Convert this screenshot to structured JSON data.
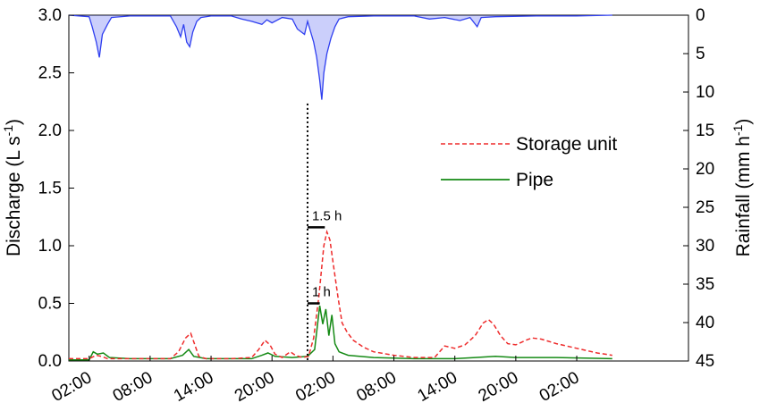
{
  "chart_data": {
    "type": "line",
    "xlabel": "",
    "ylabel": "Discharge (L s",
    "ylabel_sup": "-1",
    "ylabel_end": ")",
    "y2label": "Rainfall (mm h",
    "y2label_sup": "-1",
    "y2label_end": ")",
    "ylim": [
      0,
      3.0
    ],
    "y2lim": [
      45,
      0
    ],
    "y2_inverted": true,
    "x_range_hours": [
      -2,
      59
    ],
    "x_ticks": [
      {
        "hour": 0,
        "label": "02:00"
      },
      {
        "hour": 6,
        "label": "08:00"
      },
      {
        "hour": 12,
        "label": "14:00"
      },
      {
        "hour": 18,
        "label": "20:00"
      },
      {
        "hour": 24,
        "label": "02:00"
      },
      {
        "hour": 30,
        "label": "08:00"
      },
      {
        "hour": 36,
        "label": "14:00"
      },
      {
        "hour": 42,
        "label": "20:00"
      },
      {
        "hour": 48,
        "label": "02:00"
      }
    ],
    "y_ticks": [
      "0.0",
      "0.5",
      "1.0",
      "1.5",
      "2.0",
      "2.5",
      "3.0"
    ],
    "y2_ticks": [
      "0",
      "5",
      "10",
      "15",
      "20",
      "25",
      "30",
      "35",
      "40",
      "45"
    ],
    "legend_position": "center-right",
    "colors": {
      "storage": "#ee2b2b",
      "pipe": "#158a15",
      "rainfall": "#2f3ff0"
    },
    "series": [
      {
        "name": "Storage unit",
        "axis": "left",
        "style": "dashed",
        "points": [
          [
            -2,
            0.02
          ],
          [
            0,
            0.02
          ],
          [
            0.7,
            0.05
          ],
          [
            1.2,
            0.04
          ],
          [
            1.8,
            0.02
          ],
          [
            3,
            0.02
          ],
          [
            6,
            0.02
          ],
          [
            8,
            0.02
          ],
          [
            8.8,
            0.08
          ],
          [
            9.5,
            0.2
          ],
          [
            10,
            0.24
          ],
          [
            10.4,
            0.14
          ],
          [
            10.8,
            0.04
          ],
          [
            11.5,
            0.02
          ],
          [
            14,
            0.02
          ],
          [
            16,
            0.03
          ],
          [
            16.7,
            0.1
          ],
          [
            17.3,
            0.18
          ],
          [
            17.8,
            0.14
          ],
          [
            18.3,
            0.06
          ],
          [
            19,
            0.03
          ],
          [
            19.8,
            0.08
          ],
          [
            20.3,
            0.05
          ],
          [
            21,
            0.03
          ],
          [
            21.6,
            0.04
          ],
          [
            22.1,
            0.2
          ],
          [
            22.6,
            0.55
          ],
          [
            23.1,
            1.0
          ],
          [
            23.4,
            1.12
          ],
          [
            23.7,
            1.05
          ],
          [
            24.1,
            0.8
          ],
          [
            24.5,
            0.55
          ],
          [
            24.9,
            0.33
          ],
          [
            25.4,
            0.25
          ],
          [
            26,
            0.18
          ],
          [
            27,
            0.12
          ],
          [
            28,
            0.08
          ],
          [
            30,
            0.05
          ],
          [
            32,
            0.03
          ],
          [
            34,
            0.03
          ],
          [
            35,
            0.13
          ],
          [
            36,
            0.11
          ],
          [
            37,
            0.14
          ],
          [
            38,
            0.22
          ],
          [
            38.8,
            0.33
          ],
          [
            39.3,
            0.36
          ],
          [
            39.8,
            0.32
          ],
          [
            40.5,
            0.22
          ],
          [
            41.2,
            0.15
          ],
          [
            42,
            0.14
          ],
          [
            43,
            0.18
          ],
          [
            43.6,
            0.2
          ],
          [
            44.5,
            0.19
          ],
          [
            46,
            0.15
          ],
          [
            48,
            0.11
          ],
          [
            50,
            0.07
          ],
          [
            51.5,
            0.05
          ]
        ]
      },
      {
        "name": "Pipe",
        "axis": "left",
        "style": "solid",
        "points": [
          [
            -2,
            0.01
          ],
          [
            0,
            0.01
          ],
          [
            0.4,
            0.08
          ],
          [
            0.8,
            0.06
          ],
          [
            1.4,
            0.07
          ],
          [
            2,
            0.03
          ],
          [
            4,
            0.02
          ],
          [
            8,
            0.02
          ],
          [
            9.2,
            0.05
          ],
          [
            9.8,
            0.1
          ],
          [
            10.3,
            0.04
          ],
          [
            11.5,
            0.02
          ],
          [
            16,
            0.02
          ],
          [
            17,
            0.05
          ],
          [
            17.6,
            0.07
          ],
          [
            18.3,
            0.04
          ],
          [
            20,
            0.03
          ],
          [
            21.5,
            0.04
          ],
          [
            22.2,
            0.1
          ],
          [
            22.7,
            0.48
          ],
          [
            23,
            0.32
          ],
          [
            23.3,
            0.45
          ],
          [
            23.6,
            0.22
          ],
          [
            23.9,
            0.4
          ],
          [
            24.2,
            0.15
          ],
          [
            24.6,
            0.08
          ],
          [
            25.5,
            0.05
          ],
          [
            28,
            0.03
          ],
          [
            32,
            0.02
          ],
          [
            36,
            0.02
          ],
          [
            38,
            0.03
          ],
          [
            40,
            0.04
          ],
          [
            42,
            0.03
          ],
          [
            46,
            0.03
          ],
          [
            51.5,
            0.02
          ]
        ]
      },
      {
        "name": "Rainfall",
        "axis": "right",
        "style": "solid",
        "points": [
          [
            -2,
            0
          ],
          [
            0,
            0.2
          ],
          [
            0.3,
            1.5
          ],
          [
            0.7,
            3.5
          ],
          [
            1.0,
            5.5
          ],
          [
            1.3,
            2.5
          ],
          [
            1.8,
            1.2
          ],
          [
            2.2,
            0.3
          ],
          [
            4,
            0.1
          ],
          [
            8,
            0.1
          ],
          [
            8.6,
            1.5
          ],
          [
            9.0,
            2.8
          ],
          [
            9.3,
            1.2
          ],
          [
            9.6,
            3.5
          ],
          [
            9.9,
            4.1
          ],
          [
            10.2,
            2.2
          ],
          [
            10.6,
            0.8
          ],
          [
            11,
            0.3
          ],
          [
            12,
            0.1
          ],
          [
            14,
            0.1
          ],
          [
            15,
            0.5
          ],
          [
            16,
            0.8
          ],
          [
            17,
            1.2
          ],
          [
            17.5,
            0.6
          ],
          [
            18,
            1.0
          ],
          [
            19,
            0.3
          ],
          [
            20,
            0.5
          ],
          [
            20.5,
            1.8
          ],
          [
            21.2,
            2.5
          ],
          [
            21.5,
            0.8
          ],
          [
            22.1,
            3.5
          ],
          [
            22.4,
            5.5
          ],
          [
            22.7,
            8.5
          ],
          [
            22.9,
            11.0
          ],
          [
            23.1,
            7.5
          ],
          [
            23.4,
            5.0
          ],
          [
            23.8,
            3.0
          ],
          [
            24.2,
            1.5
          ],
          [
            24.6,
            0.5
          ],
          [
            25.5,
            0.2
          ],
          [
            28,
            0.1
          ],
          [
            32,
            0.1
          ],
          [
            33.5,
            0.5
          ],
          [
            35,
            0.3
          ],
          [
            36.5,
            0.7
          ],
          [
            37.5,
            0.3
          ],
          [
            38.2,
            1.5
          ],
          [
            38.6,
            0.3
          ],
          [
            40,
            0.2
          ],
          [
            44,
            0.1
          ],
          [
            48,
            0.1
          ],
          [
            51.5,
            0
          ]
        ]
      }
    ],
    "annotations": [
      {
        "label": "1.5 h",
        "from_hour": 21.5,
        "to_hour": 23.2,
        "y": 1.16
      },
      {
        "label": "1 h",
        "from_hour": 21.5,
        "to_hour": 22.7,
        "y": 0.5
      }
    ],
    "marker_line_hour": 21.5
  }
}
